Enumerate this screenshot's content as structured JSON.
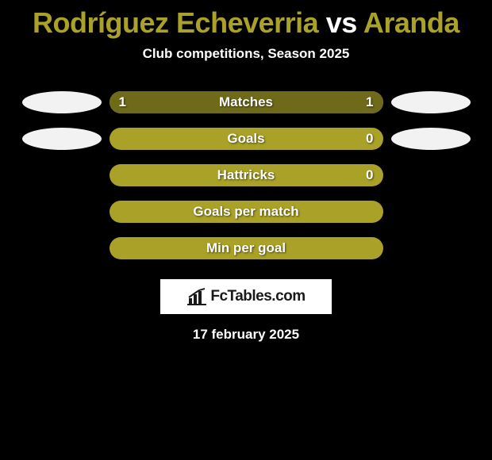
{
  "title": {
    "player1": "Rodríguez Echeverria",
    "vs": "vs",
    "player2": "Aranda",
    "color_player1": "#a9a128",
    "color_vs": "#ffffff",
    "color_player2": "#a9a128"
  },
  "subtitle": "Club competitions, Season 2025",
  "background_color": "#000000",
  "bar_track_color": "#a9a128",
  "oval_colors": {
    "left": "#f2f2f2",
    "right": "#f2f2f2"
  },
  "rows": [
    {
      "label": "Matches",
      "left_value": "1",
      "right_value": "1",
      "left_fill_pct": 50,
      "right_fill_pct": 50,
      "left_fill_color": "#6f6a1a",
      "right_fill_color": "#6f6a1a",
      "show_ovals": true
    },
    {
      "label": "Goals",
      "left_value": "",
      "right_value": "0",
      "left_fill_pct": 0,
      "right_fill_pct": 0,
      "left_fill_color": "#6f6a1a",
      "right_fill_color": "#6f6a1a",
      "show_ovals": true
    },
    {
      "label": "Hattricks",
      "left_value": "",
      "right_value": "0",
      "left_fill_pct": 0,
      "right_fill_pct": 0,
      "left_fill_color": "#6f6a1a",
      "right_fill_color": "#6f6a1a",
      "show_ovals": false
    },
    {
      "label": "Goals per match",
      "left_value": "",
      "right_value": "",
      "left_fill_pct": 0,
      "right_fill_pct": 0,
      "left_fill_color": "#6f6a1a",
      "right_fill_color": "#6f6a1a",
      "show_ovals": false
    },
    {
      "label": "Min per goal",
      "left_value": "",
      "right_value": "",
      "left_fill_pct": 0,
      "right_fill_pct": 0,
      "left_fill_color": "#6f6a1a",
      "right_fill_color": "#6f6a1a",
      "show_ovals": false
    }
  ],
  "logo": {
    "text": "FcTables.com",
    "text_color": "#1a1a1a",
    "box_bg": "#ffffff"
  },
  "date_line": "17 february 2025"
}
